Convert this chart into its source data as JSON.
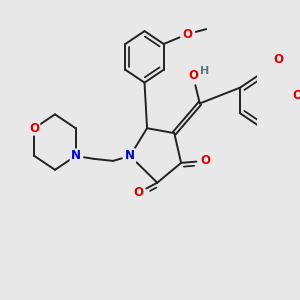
{
  "bg_color": "#e8e8e8",
  "bond_color": "#222222",
  "bond_width": 1.4,
  "atom_colors": {
    "O": "#dd0000",
    "N": "#0000cc",
    "H": "#557777",
    "C": "#222222"
  },
  "font_size": 8.5,
  "figsize": [
    3.0,
    3.0
  ],
  "dpi": 100
}
